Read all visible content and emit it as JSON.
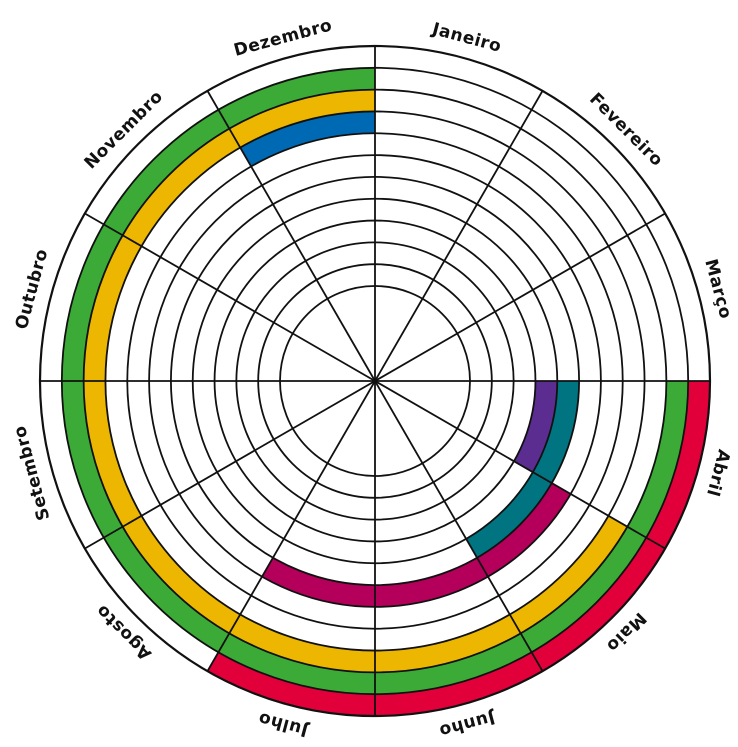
{
  "months": [
    "Janeiro",
    "Fevereiro",
    "Março",
    "Abril",
    "Maio",
    "Junho",
    "Julho",
    "Agosto",
    "Setembro",
    "Outubro",
    "Novembro",
    "Dezembro"
  ],
  "ring_count": 11,
  "bands": [
    {
      "ring": 11,
      "start_month": "Abril",
      "end_month": "Julho",
      "color": "#E2003A"
    },
    {
      "ring": 10,
      "start_month": "Abril",
      "end_month": "Dezembro",
      "color": "#3CAA36"
    },
    {
      "ring": 9,
      "start_month": "Maio",
      "end_month": "Dezembro",
      "color": "#EDB701"
    },
    {
      "ring": 8,
      "start_month": "Dezembro",
      "end_month": "Dezembro",
      "color": "#0069B4"
    },
    {
      "ring": 6,
      "start_month": "Maio",
      "end_month": "Julho",
      "color": "#B5005B"
    },
    {
      "ring": 5,
      "start_month": "Abril",
      "end_month": "Maio",
      "color": "#007480"
    },
    {
      "ring": 4,
      "start_month": "Abril",
      "end_month": "Abril",
      "color": "#5C2D91"
    }
  ]
}
